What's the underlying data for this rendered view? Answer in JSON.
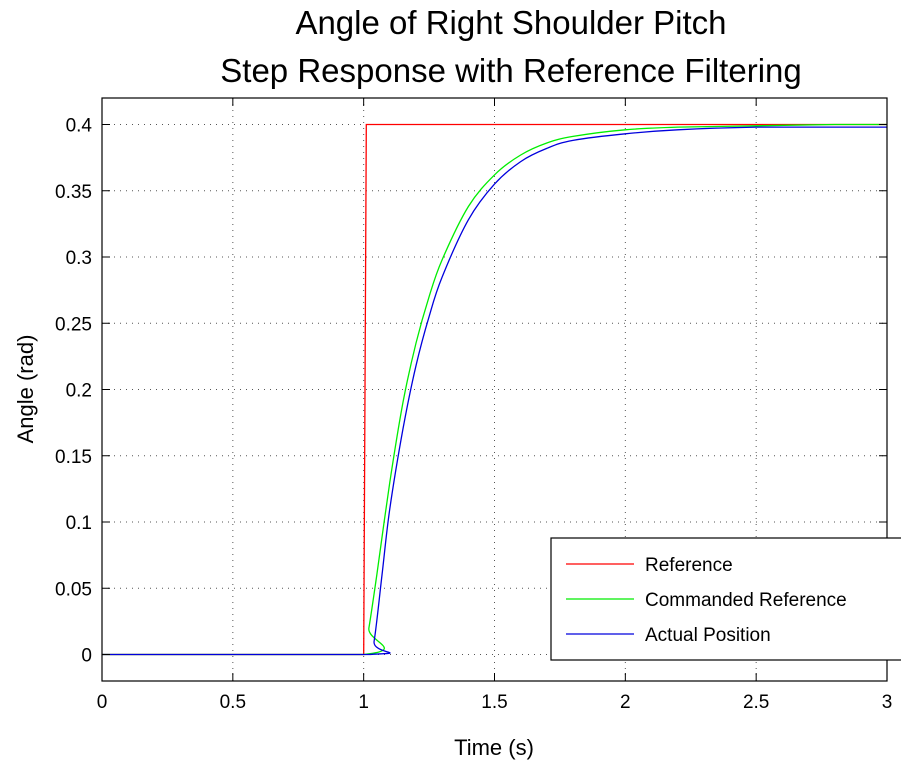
{
  "chart_data": {
    "type": "line",
    "title_lines": [
      "Angle of Right Shoulder Pitch",
      "Step Response with Reference Filtering"
    ],
    "xlabel": "Time (s)",
    "ylabel": "Angle (rad)",
    "xlim": [
      0,
      3
    ],
    "ylim": [
      -0.02,
      0.42
    ],
    "xticks": [
      0,
      0.5,
      1,
      1.5,
      2,
      2.5,
      3
    ],
    "xtick_labels": [
      "0",
      "0.5",
      "1",
      "1.5",
      "2",
      "2.5",
      "3"
    ],
    "yticks": [
      0,
      0.05,
      0.1,
      0.15,
      0.2,
      0.25,
      0.3,
      0.35,
      0.4
    ],
    "ytick_labels": [
      "0",
      "0.05",
      "0.1",
      "0.15",
      "0.2",
      "0.25",
      "0.3",
      "0.35",
      "0.4"
    ],
    "grid": true,
    "legend_position": "bottom-right",
    "series": [
      {
        "name": "Reference",
        "color": "#ff0000",
        "x": [
          0,
          1.0,
          1.01,
          3
        ],
        "y": [
          0,
          0,
          0.4,
          0.4
        ]
      },
      {
        "name": "Commanded Reference",
        "color": "#00ee00",
        "x": [
          0,
          1.0,
          1.02,
          1.05,
          1.1,
          1.15,
          1.2,
          1.25,
          1.3,
          1.4,
          1.5,
          1.6,
          1.7,
          1.8,
          2.0,
          2.2,
          2.5,
          2.8,
          3.0
        ],
        "y": [
          0,
          0,
          0.02,
          0.06,
          0.13,
          0.19,
          0.235,
          0.27,
          0.298,
          0.338,
          0.362,
          0.377,
          0.386,
          0.391,
          0.396,
          0.398,
          0.399,
          0.4,
          0.4
        ]
      },
      {
        "name": "Actual Position",
        "color": "#0000dd",
        "x": [
          0,
          1.02,
          1.04,
          1.07,
          1.1,
          1.15,
          1.2,
          1.25,
          1.3,
          1.4,
          1.5,
          1.6,
          1.7,
          1.8,
          2.0,
          2.2,
          2.5,
          2.8,
          3.0
        ],
        "y": [
          0,
          0,
          0.01,
          0.06,
          0.11,
          0.17,
          0.218,
          0.255,
          0.285,
          0.328,
          0.355,
          0.372,
          0.382,
          0.388,
          0.393,
          0.396,
          0.398,
          0.398,
          0.398
        ]
      }
    ]
  }
}
